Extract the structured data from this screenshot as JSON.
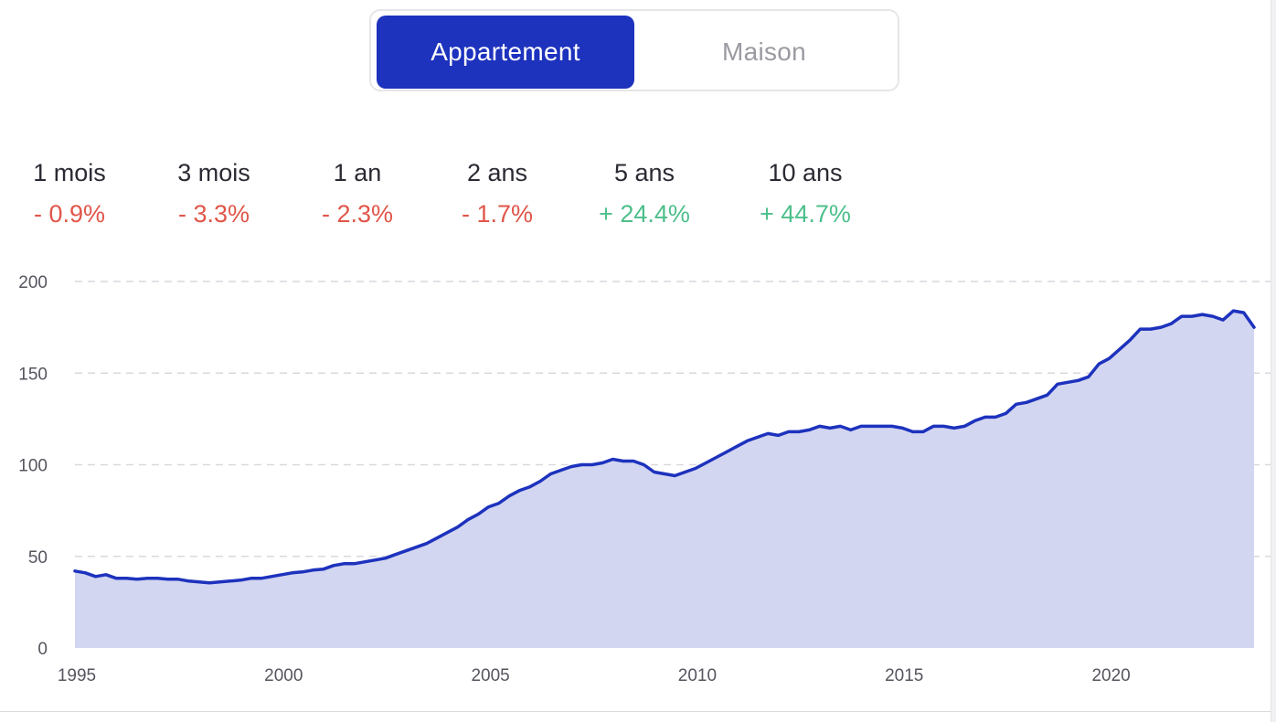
{
  "toggle": {
    "options": [
      {
        "label": "Appartement",
        "active": true
      },
      {
        "label": "Maison",
        "active": false
      }
    ]
  },
  "stats": [
    {
      "label": "1 mois",
      "value": "- 0.9%",
      "trend": "negative"
    },
    {
      "label": "3 mois",
      "value": "- 3.3%",
      "trend": "negative"
    },
    {
      "label": "1 an",
      "value": "- 2.3%",
      "trend": "negative"
    },
    {
      "label": "2 ans",
      "value": "- 1.7%",
      "trend": "negative"
    },
    {
      "label": "5 ans",
      "value": "+ 24.4%",
      "trend": "positive"
    },
    {
      "label": "10 ans",
      "value": "+ 44.7%",
      "trend": "positive"
    }
  ],
  "colors": {
    "accent": "#1d32bd",
    "area_fill": "#d3d6f1",
    "negative": "#e0564a",
    "positive": "#4dbf8b"
  },
  "chart_data": {
    "type": "area",
    "title": "",
    "xlabel": "",
    "ylabel": "",
    "xlim": [
      1995,
      2023.5
    ],
    "ylim": [
      0,
      200
    ],
    "x_ticks": [
      1995,
      2000,
      2005,
      2010,
      2015,
      2020
    ],
    "y_ticks": [
      0,
      50,
      100,
      150,
      200
    ],
    "grid": "horizontal dashed",
    "legend": "none",
    "series": [
      {
        "x": [
          1995.0,
          1995.25,
          1995.5,
          1995.75,
          1996.0,
          1996.25,
          1996.5,
          1996.75,
          1997.0,
          1997.25,
          1997.5,
          1997.75,
          1998.0,
          1998.25,
          1998.5,
          1998.75,
          1999.0,
          1999.25,
          1999.5,
          1999.75,
          2000.0,
          2000.25,
          2000.5,
          2000.75,
          2001.0,
          2001.25,
          2001.5,
          2001.75,
          2002.0,
          2002.25,
          2002.5,
          2002.75,
          2003.0,
          2003.25,
          2003.5,
          2003.75,
          2004.0,
          2004.25,
          2004.5,
          2004.75,
          2005.0,
          2005.25,
          2005.5,
          2005.75,
          2006.0,
          2006.25,
          2006.5,
          2006.75,
          2007.0,
          2007.25,
          2007.5,
          2007.75,
          2008.0,
          2008.25,
          2008.5,
          2008.75,
          2009.0,
          2009.25,
          2009.5,
          2009.75,
          2010.0,
          2010.25,
          2010.5,
          2010.75,
          2011.0,
          2011.25,
          2011.5,
          2011.75,
          2012.0,
          2012.25,
          2012.5,
          2012.75,
          2013.0,
          2013.25,
          2013.5,
          2013.75,
          2014.0,
          2014.25,
          2014.5,
          2014.75,
          2015.0,
          2015.25,
          2015.5,
          2015.75,
          2016.0,
          2016.25,
          2016.5,
          2016.75,
          2017.0,
          2017.25,
          2017.5,
          2017.75,
          2018.0,
          2018.25,
          2018.5,
          2018.75,
          2019.0,
          2019.25,
          2019.5,
          2019.75,
          2020.0,
          2020.25,
          2020.5,
          2020.75,
          2021.0,
          2021.25,
          2021.5,
          2021.75,
          2022.0,
          2022.25,
          2022.5,
          2022.75,
          2023.0,
          2023.25,
          2023.5
        ],
        "values": [
          42,
          41,
          39,
          40,
          38,
          38,
          37.5,
          38,
          38,
          37.5,
          37.5,
          36.5,
          36,
          35.5,
          36,
          36.5,
          37,
          38,
          38,
          39,
          40,
          41,
          41.5,
          42.5,
          43,
          45,
          46,
          46,
          47,
          48,
          49,
          51,
          53,
          55,
          57,
          60,
          63,
          66,
          70,
          73,
          77,
          79,
          83,
          86,
          88,
          91,
          95,
          97,
          99,
          100,
          100,
          101,
          103,
          102,
          102,
          100,
          96,
          95,
          94,
          96,
          98,
          101,
          104,
          107,
          110,
          113,
          115,
          117,
          116,
          118,
          118,
          119,
          121,
          120,
          121,
          119,
          121,
          121,
          121,
          121,
          120,
          118,
          118,
          121,
          121,
          120,
          121,
          124,
          126,
          126,
          128,
          133,
          134,
          136,
          138,
          144,
          145,
          146,
          148,
          155,
          158,
          163,
          168,
          174,
          174,
          175,
          177,
          181,
          181,
          182,
          181,
          179,
          184,
          183,
          175
        ]
      }
    ]
  }
}
